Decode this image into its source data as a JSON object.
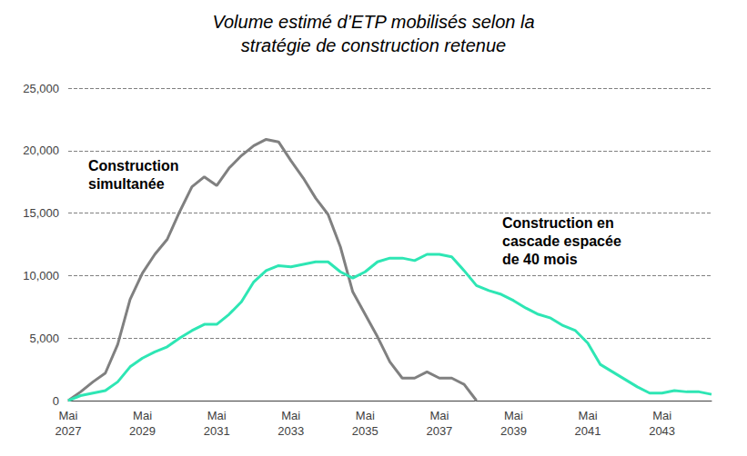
{
  "chart_data": {
    "type": "line",
    "title": "Volume estimé d’ETP mobilisés selon la\nstratégie de construction retenue",
    "categories": [
      "Mai\n2027",
      null,
      null,
      null,
      null,
      null,
      "Mai\n2029",
      null,
      null,
      null,
      null,
      null,
      "Mai\n2031",
      null,
      null,
      null,
      null,
      null,
      "Mai\n2033",
      null,
      null,
      null,
      null,
      null,
      "Mai\n2035",
      null,
      null,
      null,
      null,
      null,
      "Mai\n2037",
      null,
      null,
      null,
      null,
      null,
      "Mai\n2039",
      null,
      null,
      null,
      null,
      null,
      "Mai\n2041",
      null,
      null,
      null,
      null,
      null,
      "Mai\n2043",
      null,
      null,
      null,
      null
    ],
    "series": [
      {
        "name": "Construction\nsimultanée",
        "color": "#808080",
        "values": [
          0,
          700,
          1500,
          2200,
          4500,
          8100,
          10200,
          11700,
          12900,
          15100,
          17100,
          17900,
          17200,
          18600,
          19600,
          20400,
          20900,
          20700,
          19200,
          17800,
          16200,
          14900,
          12300,
          8700,
          6900,
          5100,
          3100,
          1800,
          1800,
          2300,
          1800,
          1800,
          1300,
          0,
          null,
          null,
          null,
          null,
          null,
          null,
          null,
          null,
          null,
          null,
          null,
          null,
          null,
          null,
          null,
          null,
          null,
          null,
          null
        ]
      },
      {
        "name": "Construction en\ncascade espacée\nde 40 mois",
        "color": "#2ee6b4",
        "values": [
          0,
          400,
          600,
          800,
          1500,
          2700,
          3400,
          3900,
          4300,
          5000,
          5600,
          6100,
          6100,
          6900,
          7900,
          9500,
          10400,
          10800,
          10700,
          10900,
          11100,
          11100,
          10300,
          9800,
          10300,
          11100,
          11400,
          11400,
          11200,
          11700,
          11700,
          11500,
          10400,
          9200,
          8800,
          8500,
          8000,
          7400,
          6900,
          6600,
          6000,
          5600,
          4600,
          2900,
          2300,
          1700,
          1100,
          600,
          600,
          800,
          700,
          700,
          500
        ]
      }
    ],
    "ylim": [
      0,
      25000
    ],
    "yticks": [
      0,
      5000,
      10000,
      15000,
      20000,
      25000
    ],
    "grid": true
  }
}
